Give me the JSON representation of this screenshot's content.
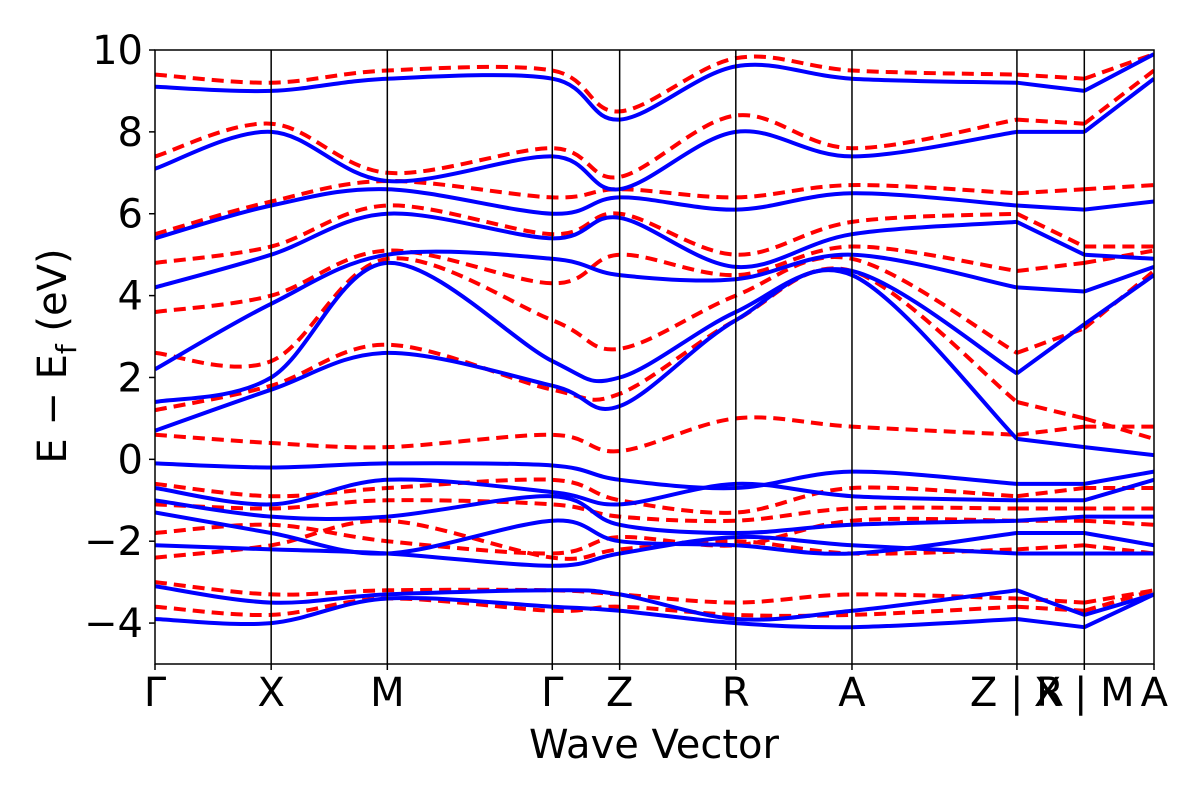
{
  "chart_data": {
    "type": "line",
    "title": "",
    "xlabel": "Wave Vector",
    "ylabel": "E − E",
    "ylabel_sub": "f",
    "ylabel_unit": " (eV)",
    "ylim": [
      -5,
      10
    ],
    "yticks": [
      {
        "value": -4,
        "label": "−4"
      },
      {
        "value": -2,
        "label": "−2"
      },
      {
        "value": 0,
        "label": "0"
      },
      {
        "value": 2,
        "label": "2"
      },
      {
        "value": 4,
        "label": "4"
      },
      {
        "value": 6,
        "label": "6"
      },
      {
        "value": 8,
        "label": "8"
      },
      {
        "value": 10,
        "label": "10"
      }
    ],
    "xlim": [
      0,
      8.6
    ],
    "kpoints": [
      {
        "label": "Γ",
        "x": 0.0
      },
      {
        "label": "X",
        "x": 1.0
      },
      {
        "label": "M",
        "x": 2.0
      },
      {
        "label": "Γ",
        "x": 3.42
      },
      {
        "label": "Z",
        "x": 4.0
      },
      {
        "label": "R",
        "x": 5.0
      },
      {
        "label": "A",
        "x": 6.0
      },
      {
        "label": "Z | R",
        "x": 7.42
      },
      {
        "label": "X | M",
        "x": 8.0
      },
      {
        "label": "A",
        "x": 8.6
      }
    ],
    "segment_breaks": [
      7.42,
      8.0
    ],
    "series_styles": [
      {
        "key": "red",
        "color": "#ff0000",
        "dash": "12 7",
        "width": 4
      },
      {
        "key": "blue",
        "color": "#0000ff",
        "dash": "",
        "width": 4
      }
    ],
    "bands": {
      "blue": [
        [
          [
            0,
            -0.1
          ],
          [
            1,
            -0.2
          ],
          [
            2,
            -0.1
          ],
          [
            3.42,
            -0.15
          ],
          [
            4,
            -0.5
          ],
          [
            5,
            -0.7
          ],
          [
            6,
            -0.3
          ],
          [
            7.42,
            -0.6
          ],
          [
            8,
            -0.6
          ],
          [
            8.6,
            -0.3
          ]
        ],
        [
          [
            0,
            -0.7
          ],
          [
            1,
            -1.1
          ],
          [
            2,
            -0.5
          ],
          [
            3.42,
            -0.8
          ],
          [
            4,
            -1.1
          ],
          [
            5,
            -0.6
          ],
          [
            6,
            -0.9
          ],
          [
            7.42,
            -1.0
          ],
          [
            8,
            -1.0
          ],
          [
            8.6,
            -0.5
          ]
        ],
        [
          [
            0,
            -1.0
          ],
          [
            1,
            -1.4
          ],
          [
            2,
            -1.4
          ],
          [
            3.42,
            -0.9
          ],
          [
            4,
            -1.6
          ],
          [
            5,
            -1.8
          ],
          [
            6,
            -1.6
          ],
          [
            7.42,
            -1.5
          ],
          [
            8,
            -1.4
          ],
          [
            8.6,
            -1.4
          ]
        ],
        [
          [
            0,
            -1.3
          ],
          [
            1,
            -1.8
          ],
          [
            2,
            -2.3
          ],
          [
            3.42,
            -1.5
          ],
          [
            4,
            -2.0
          ],
          [
            5,
            -2.1
          ],
          [
            6,
            -2.3
          ],
          [
            7.42,
            -1.8
          ],
          [
            8,
            -1.8
          ],
          [
            8.6,
            -2.1
          ]
        ],
        [
          [
            0,
            -2.1
          ],
          [
            1,
            -2.2
          ],
          [
            2,
            -2.3
          ],
          [
            3.42,
            -2.6
          ],
          [
            4,
            -2.3
          ],
          [
            5,
            -1.9
          ],
          [
            6,
            -2.1
          ],
          [
            7.42,
            -2.3
          ],
          [
            8,
            -2.3
          ],
          [
            8.6,
            -2.3
          ]
        ],
        [
          [
            0,
            -3.1
          ],
          [
            1,
            -3.5
          ],
          [
            2,
            -3.3
          ],
          [
            3.42,
            -3.2
          ],
          [
            4,
            -3.3
          ],
          [
            5,
            -3.9
          ],
          [
            6,
            -3.7
          ],
          [
            7.42,
            -3.2
          ],
          [
            8,
            -3.8
          ],
          [
            8.6,
            -3.3
          ]
        ],
        [
          [
            0,
            -3.9
          ],
          [
            1,
            -4.0
          ],
          [
            2,
            -3.4
          ],
          [
            3.42,
            -3.6
          ],
          [
            4,
            -3.7
          ],
          [
            5,
            -4.0
          ],
          [
            6,
            -4.1
          ],
          [
            7.42,
            -3.9
          ],
          [
            8,
            -4.1
          ],
          [
            8.6,
            -3.3
          ]
        ],
        [
          [
            0,
            0.7
          ],
          [
            1,
            1.7
          ],
          [
            2,
            2.6
          ],
          [
            3.42,
            1.8
          ],
          [
            4,
            1.3
          ],
          [
            5,
            3.4
          ],
          [
            6,
            4.5
          ],
          [
            7.42,
            0.5
          ],
          [
            8,
            0.3
          ],
          [
            8.6,
            0.1
          ]
        ],
        [
          [
            0,
            1.4
          ],
          [
            1,
            2.0
          ],
          [
            2,
            4.8
          ],
          [
            3.42,
            2.4
          ],
          [
            4,
            2.0
          ],
          [
            5,
            3.6
          ],
          [
            6,
            4.6
          ],
          [
            7.42,
            2.1
          ],
          [
            8,
            3.3
          ],
          [
            8.6,
            4.5
          ]
        ],
        [
          [
            0,
            2.2
          ],
          [
            1,
            3.8
          ],
          [
            2,
            5.0
          ],
          [
            3.42,
            4.9
          ],
          [
            4,
            4.5
          ],
          [
            5,
            4.4
          ],
          [
            6,
            5.0
          ],
          [
            7.42,
            4.2
          ],
          [
            8,
            4.1
          ],
          [
            8.6,
            4.7
          ]
        ],
        [
          [
            0,
            4.2
          ],
          [
            1,
            5.0
          ],
          [
            2,
            6.0
          ],
          [
            3.42,
            5.4
          ],
          [
            4,
            5.9
          ],
          [
            5,
            4.7
          ],
          [
            6,
            5.5
          ],
          [
            7.42,
            5.8
          ],
          [
            8,
            5.0
          ],
          [
            8.6,
            4.9
          ]
        ],
        [
          [
            0,
            5.4
          ],
          [
            1,
            6.2
          ],
          [
            2,
            6.6
          ],
          [
            3.42,
            6.0
          ],
          [
            4,
            6.4
          ],
          [
            5,
            6.1
          ],
          [
            6,
            6.5
          ],
          [
            7.42,
            6.2
          ],
          [
            8,
            6.1
          ],
          [
            8.6,
            6.3
          ]
        ],
        [
          [
            0,
            7.1
          ],
          [
            1,
            8.0
          ],
          [
            2,
            6.8
          ],
          [
            3.42,
            7.4
          ],
          [
            4,
            6.6
          ],
          [
            5,
            8.0
          ],
          [
            6,
            7.4
          ],
          [
            7.42,
            8.0
          ],
          [
            8,
            8.0
          ],
          [
            8.6,
            9.3
          ]
        ],
        [
          [
            0,
            9.1
          ],
          [
            1,
            9.0
          ],
          [
            2,
            9.3
          ],
          [
            3.42,
            9.3
          ],
          [
            4,
            8.3
          ],
          [
            5,
            9.6
          ],
          [
            6,
            9.3
          ],
          [
            7.42,
            9.2
          ],
          [
            8,
            9.0
          ],
          [
            8.6,
            9.9
          ]
        ]
      ],
      "red": [
        [
          [
            0,
            0.6
          ],
          [
            1,
            0.4
          ],
          [
            2,
            0.3
          ],
          [
            3.42,
            0.6
          ],
          [
            4,
            0.2
          ],
          [
            5,
            1.0
          ],
          [
            6,
            0.8
          ],
          [
            7.42,
            0.6
          ],
          [
            8,
            0.8
          ],
          [
            8.6,
            0.8
          ]
        ],
        [
          [
            0,
            -0.6
          ],
          [
            1,
            -0.9
          ],
          [
            2,
            -0.7
          ],
          [
            3.42,
            -0.5
          ],
          [
            4,
            -1.0
          ],
          [
            5,
            -1.3
          ],
          [
            6,
            -0.7
          ],
          [
            7.42,
            -0.9
          ],
          [
            8,
            -0.7
          ],
          [
            8.6,
            -0.7
          ]
        ],
        [
          [
            0,
            -1.1
          ],
          [
            1,
            -1.2
          ],
          [
            2,
            -1.0
          ],
          [
            3.42,
            -1.1
          ],
          [
            4,
            -1.4
          ],
          [
            5,
            -1.5
          ],
          [
            6,
            -1.2
          ],
          [
            7.42,
            -1.2
          ],
          [
            8,
            -1.2
          ],
          [
            8.6,
            -1.2
          ]
        ],
        [
          [
            0,
            -1.8
          ],
          [
            1,
            -1.6
          ],
          [
            2,
            -2.0
          ],
          [
            3.42,
            -2.3
          ],
          [
            4,
            -1.9
          ],
          [
            5,
            -2.1
          ],
          [
            6,
            -1.5
          ],
          [
            7.42,
            -1.5
          ],
          [
            8,
            -1.5
          ],
          [
            8.6,
            -1.6
          ]
        ],
        [
          [
            0,
            -2.4
          ],
          [
            1,
            -2.1
          ],
          [
            2,
            -1.5
          ],
          [
            3.42,
            -2.4
          ],
          [
            4,
            -2.2
          ],
          [
            5,
            -2.0
          ],
          [
            6,
            -2.3
          ],
          [
            7.42,
            -2.2
          ],
          [
            8,
            -2.1
          ],
          [
            8.6,
            -2.3
          ]
        ],
        [
          [
            0,
            -3.0
          ],
          [
            1,
            -3.3
          ],
          [
            2,
            -3.2
          ],
          [
            3.42,
            -3.2
          ],
          [
            4,
            -3.3
          ],
          [
            5,
            -3.5
          ],
          [
            6,
            -3.3
          ],
          [
            7.42,
            -3.4
          ],
          [
            8,
            -3.5
          ],
          [
            8.6,
            -3.2
          ]
        ],
        [
          [
            0,
            -3.6
          ],
          [
            1,
            -3.8
          ],
          [
            2,
            -3.4
          ],
          [
            3.42,
            -3.7
          ],
          [
            4,
            -3.6
          ],
          [
            5,
            -3.8
          ],
          [
            6,
            -3.8
          ],
          [
            7.42,
            -3.6
          ],
          [
            8,
            -3.7
          ],
          [
            8.6,
            -3.2
          ]
        ],
        [
          [
            0,
            1.2
          ],
          [
            1,
            1.8
          ],
          [
            2,
            2.8
          ],
          [
            3.42,
            1.7
          ],
          [
            4,
            1.6
          ],
          [
            5,
            3.4
          ],
          [
            6,
            4.6
          ],
          [
            7.42,
            1.4
          ],
          [
            8,
            1.0
          ],
          [
            8.6,
            0.5
          ]
        ],
        [
          [
            0,
            2.6
          ],
          [
            1,
            2.4
          ],
          [
            2,
            4.9
          ],
          [
            3.42,
            3.4
          ],
          [
            4,
            2.7
          ],
          [
            5,
            4.0
          ],
          [
            6,
            4.9
          ],
          [
            7.42,
            2.6
          ],
          [
            8,
            3.2
          ],
          [
            8.6,
            4.6
          ]
        ],
        [
          [
            0,
            3.6
          ],
          [
            1,
            4.0
          ],
          [
            2,
            5.1
          ],
          [
            3.42,
            4.3
          ],
          [
            4,
            5.0
          ],
          [
            5,
            4.5
          ],
          [
            6,
            5.2
          ],
          [
            7.42,
            4.6
          ],
          [
            8,
            4.8
          ],
          [
            8.6,
            5.1
          ]
        ],
        [
          [
            0,
            4.8
          ],
          [
            1,
            5.2
          ],
          [
            2,
            6.2
          ],
          [
            3.42,
            5.5
          ],
          [
            4,
            6.0
          ],
          [
            5,
            5.0
          ],
          [
            6,
            5.8
          ],
          [
            7.42,
            6.0
          ],
          [
            8,
            5.2
          ],
          [
            8.6,
            5.2
          ]
        ],
        [
          [
            0,
            5.5
          ],
          [
            1,
            6.3
          ],
          [
            2,
            6.8
          ],
          [
            3.42,
            6.4
          ],
          [
            4,
            6.6
          ],
          [
            5,
            6.4
          ],
          [
            6,
            6.7
          ],
          [
            7.42,
            6.5
          ],
          [
            8,
            6.6
          ],
          [
            8.6,
            6.7
          ]
        ],
        [
          [
            0,
            7.4
          ],
          [
            1,
            8.2
          ],
          [
            2,
            7.0
          ],
          [
            3.42,
            7.6
          ],
          [
            4,
            6.9
          ],
          [
            5,
            8.4
          ],
          [
            6,
            7.6
          ],
          [
            7.42,
            8.3
          ],
          [
            8,
            8.2
          ],
          [
            8.6,
            9.5
          ]
        ],
        [
          [
            0,
            9.4
          ],
          [
            1,
            9.2
          ],
          [
            2,
            9.5
          ],
          [
            3.42,
            9.5
          ],
          [
            4,
            8.5
          ],
          [
            5,
            9.8
          ],
          [
            6,
            9.5
          ],
          [
            7.42,
            9.4
          ],
          [
            8,
            9.3
          ],
          [
            8.6,
            9.9
          ]
        ]
      ]
    }
  }
}
